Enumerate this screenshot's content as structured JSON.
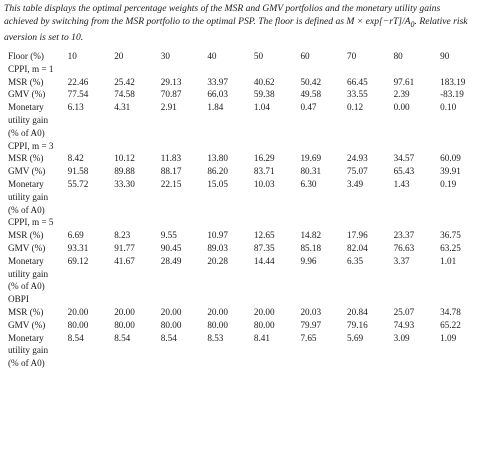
{
  "caption": {
    "part1": "This table displays the optimal percentage weights of the MSR and GMV portfolios and the monetary utility gains achieved by switching from the MSR portfolio to the optimal PSP. The floor is defined as ",
    "formula": "M × exp[−rT]/A",
    "formula_sub": "0",
    "part2": ". Relative risk aversion is set to 10."
  },
  "header": {
    "label": "Floor (%)",
    "values": [
      "10",
      "20",
      "30",
      "40",
      "50",
      "60",
      "70",
      "80",
      "90"
    ]
  },
  "groups": [
    {
      "title": "CPPI, m = 1",
      "rows": [
        {
          "label": "MSR (%)",
          "values": [
            "22.46",
            "25.42",
            "29.13",
            "33.97",
            "40.62",
            "50.42",
            "66.45",
            "97.61",
            "183.19"
          ]
        },
        {
          "label": "GMV (%)",
          "values": [
            "77.54",
            "74.58",
            "70.87",
            "66.03",
            "59.38",
            "49.58",
            "33.55",
            "2.39",
            "-83.19"
          ]
        },
        {
          "label": "Monetary",
          "values": [
            "6.13",
            "4.31",
            "2.91",
            "1.84",
            "1.04",
            "0.47",
            "0.12",
            "0.00",
            "0.10"
          ],
          "cont": [
            "utility gain",
            "(% of A0)"
          ]
        }
      ]
    },
    {
      "title": "CPPI, m = 3",
      "rows": [
        {
          "label": "MSR (%)",
          "values": [
            "8.42",
            "10.12",
            "11.83",
            "13.80",
            "16.29",
            "19.69",
            "24.93",
            "34.57",
            "60.09"
          ]
        },
        {
          "label": "GMV (%)",
          "values": [
            "91.58",
            "89.88",
            "88.17",
            "86.20",
            "83.71",
            "80.31",
            "75.07",
            "65.43",
            "39.91"
          ]
        },
        {
          "label": "Monetary",
          "values": [
            "55.72",
            "33.30",
            "22.15",
            "15.05",
            "10.03",
            "6.30",
            "3.49",
            "1.43",
            "0.19"
          ],
          "cont": [
            "utility gain",
            "(% of A0)"
          ]
        }
      ]
    },
    {
      "title": "CPPI, m = 5",
      "rows": [
        {
          "label": "MSR (%)",
          "values": [
            "6.69",
            "8.23",
            "9.55",
            "10.97",
            "12.65",
            "14.82",
            "17.96",
            "23.37",
            "36.75"
          ]
        },
        {
          "label": "GMV (%)",
          "values": [
            "93.31",
            "91.77",
            "90.45",
            "89.03",
            "87.35",
            "85.18",
            "82.04",
            "76.63",
            "63.25"
          ]
        },
        {
          "label": "Monetary",
          "values": [
            "69.12",
            "41.67",
            "28.49",
            "20.28",
            "14.44",
            "9.96",
            "6.35",
            "3.37",
            "1.01"
          ],
          "cont": [
            "utility gain",
            "(% of A0)"
          ]
        }
      ]
    },
    {
      "title": "OBPI",
      "rows": [
        {
          "label": "MSR (%)",
          "values": [
            "20.00",
            "20.00",
            "20.00",
            "20.00",
            "20.00",
            "20.03",
            "20.84",
            "25.07",
            "34.78"
          ]
        },
        {
          "label": "GMV (%)",
          "values": [
            "80.00",
            "80.00",
            "80.00",
            "80.00",
            "80.00",
            "79.97",
            "79.16",
            "74.93",
            "65.22"
          ]
        },
        {
          "label": "Monetary",
          "values": [
            "8.54",
            "8.54",
            "8.54",
            "8.53",
            "8.41",
            "7.65",
            "5.69",
            "3.09",
            "1.09"
          ],
          "cont": [
            "utility gain",
            "(% of A0)"
          ]
        }
      ]
    }
  ]
}
